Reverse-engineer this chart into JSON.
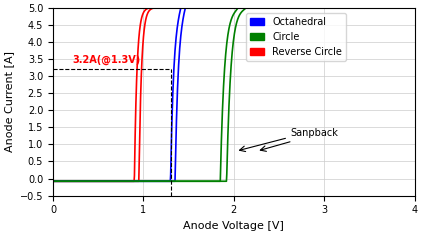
{
  "title": "",
  "xlabel": "Anode Voltage [V]",
  "ylabel": "Anode Current [A]",
  "xlim": [
    0,
    4
  ],
  "ylim": [
    -0.5,
    5
  ],
  "xticks": [
    0,
    1,
    2,
    3,
    4
  ],
  "yticks": [
    -0.5,
    0,
    0.5,
    1,
    1.5,
    2,
    2.5,
    3,
    3.5,
    4,
    4.5,
    5
  ],
  "annotation_text": "3.2A(@1.3V)",
  "annotation_color": "red",
  "vline_x": 1.3,
  "hline_y": 3.2,
  "sanpback_text": "Sanpback",
  "legend_labels": [
    "Octahedral",
    "Circle",
    "Reverse Circle"
  ],
  "legend_colors": [
    "blue",
    "green",
    "red"
  ],
  "background_color": "#ffffff",
  "grid_color": "#cccccc"
}
